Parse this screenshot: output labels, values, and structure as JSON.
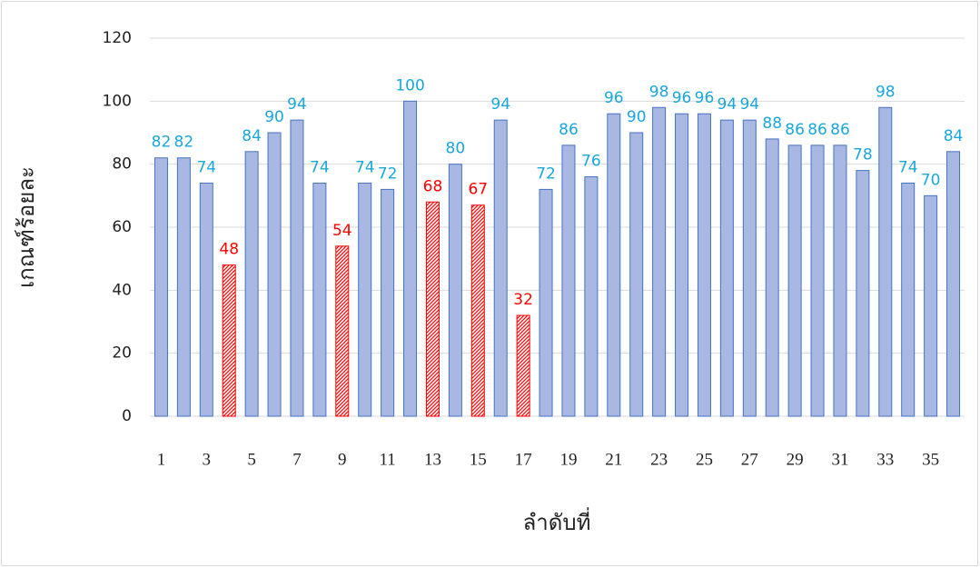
{
  "chart_data": {
    "type": "bar",
    "x_label": "ลำดับที่",
    "y_label": "เกณฑ์ร้อยละ",
    "categories": [
      "1",
      null,
      "3",
      null,
      "5",
      null,
      "7",
      null,
      "9",
      null,
      "11",
      null,
      "13",
      null,
      "15",
      null,
      "17",
      null,
      "19",
      null,
      "21",
      null,
      "23",
      null,
      "25",
      null,
      "27",
      null,
      "29",
      null,
      "31",
      null,
      "33",
      null,
      "35",
      null
    ],
    "values": [
      82,
      82,
      74,
      48,
      84,
      90,
      94,
      74,
      54,
      74,
      72,
      100,
      68,
      80,
      67,
      94,
      32,
      72,
      86,
      76,
      96,
      90,
      98,
      96,
      96,
      94,
      94,
      88,
      86,
      86,
      86,
      78,
      98,
      74,
      70,
      84
    ],
    "colors": [
      "#a9b8e2",
      "#a9b8e2",
      "#a9b8e2",
      "#ff0000",
      "#a9b8e2",
      "#a9b8e2",
      "#a9b8e2",
      "#a9b8e2",
      "#ff0000",
      "#a9b8e2",
      "#a9b8e2",
      "#a9b8e2",
      "#ff0000",
      "#a9b8e2",
      "#ff0000",
      "#a9b8e2",
      "#ff0000",
      "#a9b8e2",
      "#a9b8e2",
      "#a9b8e2",
      "#a9b8e2",
      "#a9b8e2",
      "#a9b8e2",
      "#a9b8e2",
      "#a9b8e2",
      "#a9b8e2",
      "#a9b8e2",
      "#a9b8e2",
      "#a9b8e2",
      "#a9b8e2",
      "#a9b8e2",
      "#a9b8e2",
      "#a9b8e2",
      "#a9b8e2",
      "#a9b8e2",
      "#a9b8e2"
    ],
    "hatch_color": "#ff0000",
    "label_color": "#1aa7dc",
    "ylim": [
      0,
      120
    ],
    "yticks": [
      0,
      20,
      40,
      60,
      80,
      100,
      120
    ],
    "grid": true
  }
}
